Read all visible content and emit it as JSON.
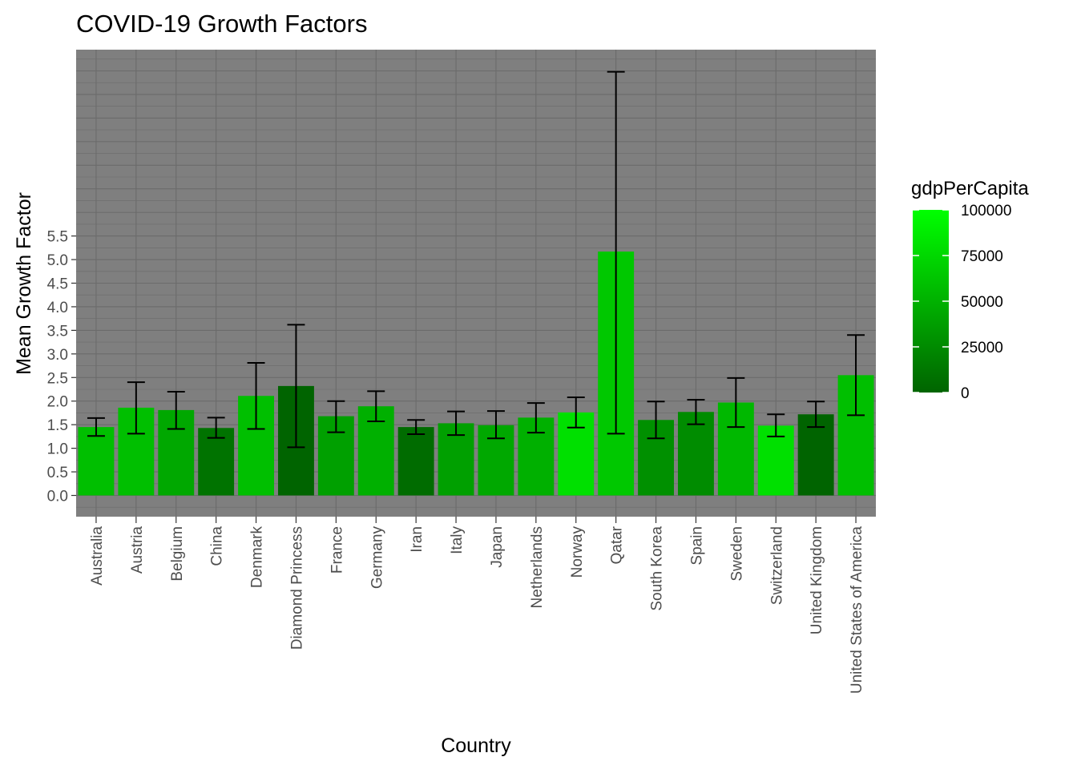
{
  "chart_data": {
    "type": "bar",
    "title": "COVID-19 Growth Factors",
    "xlabel": "Country",
    "ylabel": "Mean Growth Factor",
    "ylim": [
      -0.45,
      9.45
    ],
    "yticks": [
      0.0,
      0.5,
      1.0,
      1.5,
      2.0,
      2.5,
      3.0,
      3.5,
      4.0,
      4.5,
      5.0,
      5.5
    ],
    "ytick_labels": [
      "0.0",
      "0.5",
      "1.0",
      "1.5",
      "2.0",
      "2.5",
      "3.0",
      "3.5",
      "4.0",
      "4.5",
      "5.0",
      "5.5"
    ],
    "grid": true,
    "panel_background": "#7f7f7f",
    "gridline_color": "#6b6b6b",
    "errorbar_color": "#000000",
    "categories": [
      "Australia",
      "Austria",
      "Belgium",
      "China",
      "Denmark",
      "Diamond Princess",
      "France",
      "Germany",
      "Iran",
      "Italy",
      "Japan",
      "Netherlands",
      "Norway",
      "Qatar",
      "South Korea",
      "Spain",
      "Sweden",
      "Switzerland",
      "United Kingdom",
      "United States of America"
    ],
    "values": [
      1.45,
      1.86,
      1.81,
      1.43,
      2.11,
      2.32,
      1.68,
      1.89,
      1.45,
      1.53,
      1.49,
      1.65,
      1.76,
      5.17,
      1.6,
      1.77,
      1.97,
      1.48,
      1.72,
      2.55
    ],
    "error_low": [
      1.26,
      1.31,
      1.41,
      1.22,
      1.41,
      1.02,
      1.34,
      1.57,
      1.3,
      1.28,
      1.21,
      1.33,
      1.44,
      1.31,
      1.21,
      1.51,
      1.45,
      1.25,
      1.45,
      1.7
    ],
    "error_high": [
      1.64,
      2.4,
      2.2,
      1.65,
      2.81,
      3.62,
      2.0,
      2.21,
      1.6,
      1.78,
      1.79,
      1.96,
      2.08,
      8.98,
      1.99,
      2.03,
      2.49,
      1.72,
      1.99,
      3.4
    ],
    "colors": [
      "#00bf00",
      "#00bf00",
      "#00a800",
      "#007300",
      "#00bf00",
      "#006400",
      "#00a000",
      "#00b000",
      "#006c00",
      "#00a000",
      "#00a800",
      "#00b000",
      "#00e000",
      "#00c800",
      "#009000",
      "#008c00",
      "#00b800",
      "#00e000",
      "#006400",
      "#00bf00"
    ],
    "legend": {
      "title": "gdpPerCapita",
      "placement": "right",
      "breaks": [
        0,
        25000,
        50000,
        75000,
        100000
      ],
      "labels": [
        "0",
        "25000",
        "50000",
        "75000",
        "100000"
      ],
      "range": [
        0,
        100000
      ],
      "low_color": "#006400",
      "high_color": "#00ff00"
    }
  }
}
